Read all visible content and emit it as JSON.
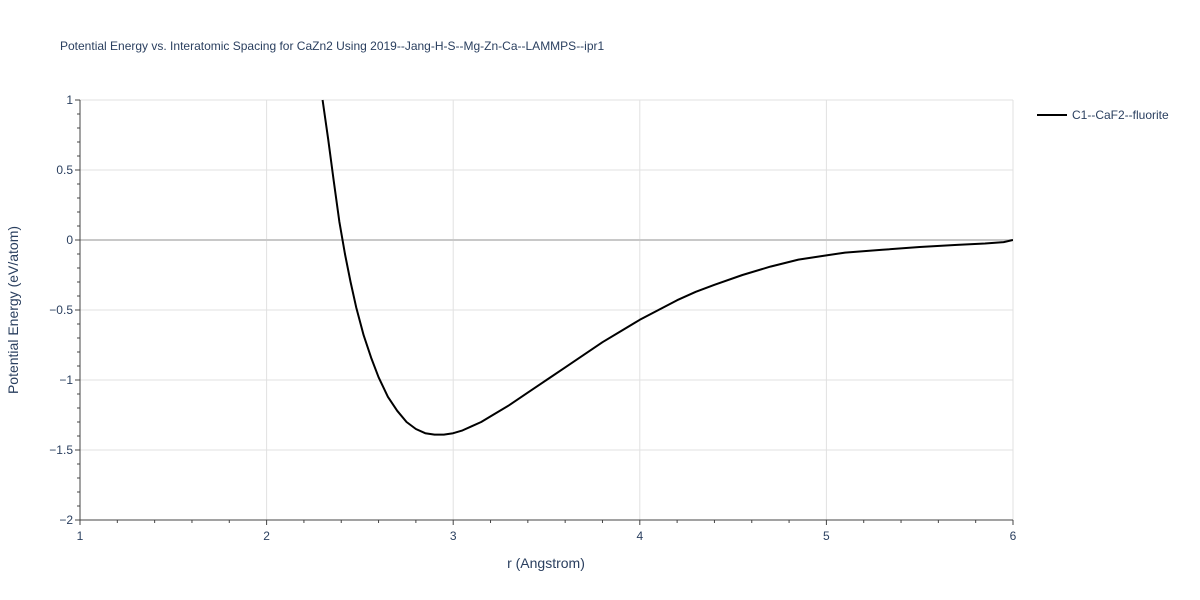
{
  "chart_data": {
    "type": "line",
    "title": "Potential Energy vs. Interatomic Spacing for CaZn2 Using 2019--Jang-H-S--Mg-Zn-Ca--LAMMPS--ipr1",
    "xlabel": "r (Angstrom)",
    "ylabel": "Potential Energy (eV/atom)",
    "xlim": [
      1,
      6
    ],
    "ylim": [
      -2,
      1
    ],
    "xticks": [
      1,
      2,
      3,
      4,
      5,
      6
    ],
    "xtick_labels": [
      "1",
      "2",
      "3",
      "4",
      "5",
      "6"
    ],
    "yticks": [
      1,
      0.5,
      0,
      -0.5,
      -1,
      -1.5,
      -2
    ],
    "ytick_labels": [
      "1",
      "0.5",
      "0",
      "−0.5",
      "−1",
      "−1.5",
      "−2"
    ],
    "grid": true,
    "legend_position": "top-right",
    "series": [
      {
        "name": "C1--CaF2--fluorite",
        "color": "#000000",
        "x": [
          2.3,
          2.33,
          2.36,
          2.39,
          2.42,
          2.45,
          2.48,
          2.52,
          2.56,
          2.6,
          2.65,
          2.7,
          2.75,
          2.8,
          2.85,
          2.9,
          2.95,
          3.0,
          3.05,
          3.1,
          3.15,
          3.2,
          3.3,
          3.4,
          3.5,
          3.6,
          3.7,
          3.8,
          3.9,
          4.0,
          4.1,
          4.2,
          4.3,
          4.4,
          4.55,
          4.7,
          4.85,
          5.0,
          5.1,
          5.3,
          5.5,
          5.7,
          5.85,
          5.95,
          6.0
        ],
        "y": [
          1.0,
          0.72,
          0.42,
          0.13,
          -0.1,
          -0.3,
          -0.48,
          -0.68,
          -0.84,
          -0.98,
          -1.12,
          -1.22,
          -1.3,
          -1.35,
          -1.38,
          -1.39,
          -1.39,
          -1.38,
          -1.36,
          -1.33,
          -1.3,
          -1.26,
          -1.18,
          -1.09,
          -1.0,
          -0.91,
          -0.82,
          -0.73,
          -0.65,
          -0.57,
          -0.5,
          -0.43,
          -0.37,
          -0.32,
          -0.25,
          -0.19,
          -0.14,
          -0.11,
          -0.09,
          -0.07,
          -0.05,
          -0.035,
          -0.025,
          -0.015,
          0.0
        ]
      }
    ]
  }
}
